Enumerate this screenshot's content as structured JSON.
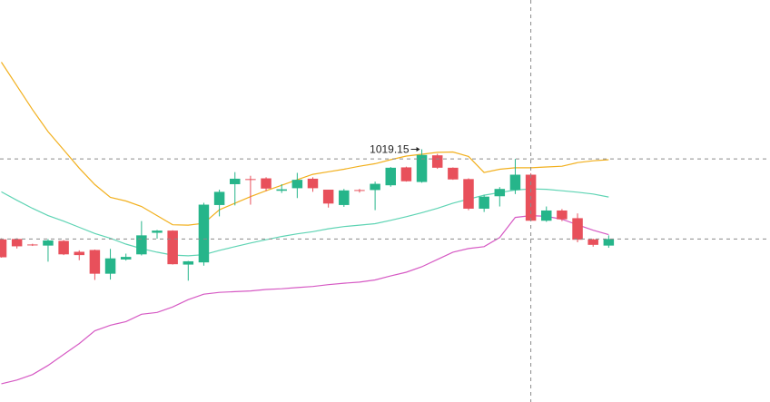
{
  "chart_data": {
    "type": "candlestick",
    "ylim": [
      950,
      1060
    ],
    "grid": false,
    "legend": "none",
    "colors": {
      "up": "#26b58a",
      "down": "#e8505b",
      "upper_band": "#f2b01e",
      "middle_band": "#5fd4b4",
      "lower_band": "#d65ac4",
      "crosshair": "#8a8a8a"
    },
    "annotations": {
      "max_label": "1019.15",
      "max_index": 27
    },
    "crosshair": {
      "index": 34,
      "price": 1016.5,
      "reference_price": 994.6
    },
    "candles": [
      {
        "o": 994.5,
        "h": 994.8,
        "l": 989.5,
        "c": 989.6
      },
      {
        "o": 994.6,
        "h": 994.8,
        "l": 992.0,
        "c": 992.6
      },
      {
        "o": 993.1,
        "h": 993.3,
        "l": 992.7,
        "c": 993.0
      },
      {
        "o": 992.8,
        "h": 994.6,
        "l": 988.4,
        "c": 994.2
      },
      {
        "o": 994.1,
        "h": 994.3,
        "l": 990.2,
        "c": 990.4
      },
      {
        "o": 991.1,
        "h": 991.5,
        "l": 988.8,
        "c": 990.2
      },
      {
        "o": 991.6,
        "h": 991.7,
        "l": 983.4,
        "c": 985.1
      },
      {
        "o": 985.1,
        "h": 991.9,
        "l": 983.5,
        "c": 989.3
      },
      {
        "o": 989.0,
        "h": 990.6,
        "l": 988.7,
        "c": 989.7
      },
      {
        "o": 990.4,
        "h": 999.5,
        "l": 990.1,
        "c": 995.6
      },
      {
        "o": 996.3,
        "h": 997.1,
        "l": 994.7,
        "c": 996.9
      },
      {
        "o": 996.9,
        "h": 997.0,
        "l": 987.6,
        "c": 987.7
      },
      {
        "o": 987.6,
        "h": 988.6,
        "l": 983.2,
        "c": 988.5
      },
      {
        "o": 988.2,
        "h": 1004.5,
        "l": 987.3,
        "c": 1004.0
      },
      {
        "o": 1003.9,
        "h": 1008.1,
        "l": 1000.8,
        "c": 1007.5
      },
      {
        "o": 1009.6,
        "h": 1012.9,
        "l": 1003.8,
        "c": 1011.1
      },
      {
        "o": 1011.0,
        "h": 1011.9,
        "l": 1004.0,
        "c": 1010.8
      },
      {
        "o": 1011.2,
        "h": 1011.5,
        "l": 1007.7,
        "c": 1008.4
      },
      {
        "o": 1007.8,
        "h": 1009.6,
        "l": 1007.2,
        "c": 1008.2
      },
      {
        "o": 1008.5,
        "h": 1012.7,
        "l": 1005.8,
        "c": 1010.8
      },
      {
        "o": 1011.1,
        "h": 1011.5,
        "l": 1007.5,
        "c": 1008.5
      },
      {
        "o": 1008.1,
        "h": 1008.1,
        "l": 1003.2,
        "c": 1004.3
      },
      {
        "o": 1003.9,
        "h": 1008.3,
        "l": 1003.4,
        "c": 1007.9
      },
      {
        "o": 1008.0,
        "h": 1008.3,
        "l": 1007.3,
        "c": 1007.8
      },
      {
        "o": 1008.0,
        "h": 1010.3,
        "l": 1002.5,
        "c": 1009.7
      },
      {
        "o": 1009.3,
        "h": 1014.3,
        "l": 1008.9,
        "c": 1014.1
      },
      {
        "o": 1014.2,
        "h": 1014.4,
        "l": 1010.3,
        "c": 1010.4
      },
      {
        "o": 1010.2,
        "h": 1019.15,
        "l": 1010.0,
        "c": 1017.6
      },
      {
        "o": 1017.5,
        "h": 1017.9,
        "l": 1013.8,
        "c": 1014.1
      },
      {
        "o": 1014.1,
        "h": 1014.2,
        "l": 1010.8,
        "c": 1010.9
      },
      {
        "o": 1011.0,
        "h": 1011.2,
        "l": 1002.5,
        "c": 1002.9
      },
      {
        "o": 1002.9,
        "h": 1006.7,
        "l": 1002.0,
        "c": 1006.2
      },
      {
        "o": 1006.3,
        "h": 1008.8,
        "l": 1003.5,
        "c": 1008.3
      },
      {
        "o": 1008.0,
        "h": 1016.5,
        "l": 1006.9,
        "c": 1012.2
      },
      {
        "o": 1012.2,
        "h": 1012.6,
        "l": 999.5,
        "c": 999.6
      },
      {
        "o": 999.6,
        "h": 1003.5,
        "l": 999.3,
        "c": 1002.4
      },
      {
        "o": 1002.4,
        "h": 1002.8,
        "l": 999.5,
        "c": 1000.0
      },
      {
        "o": 1000.3,
        "h": 1001.6,
        "l": 993.7,
        "c": 994.4
      },
      {
        "o": 994.5,
        "h": 994.7,
        "l": 992.5,
        "c": 993.0
      },
      {
        "o": 992.8,
        "h": 995.6,
        "l": 992.2,
        "c": 994.6
      }
    ],
    "bollinger": {
      "upper": [
        1043.0,
        1036.5,
        1030.0,
        1024.0,
        1019.0,
        1014.0,
        1009.5,
        1006.0,
        1005.0,
        1003.5,
        1001.0,
        998.5,
        998.4,
        998.9,
        1002.6,
        1004.4,
        1006.2,
        1007.8,
        1009.3,
        1010.8,
        1012.3,
        1013.0,
        1013.7,
        1014.5,
        1015.2,
        1016.3,
        1017.3,
        1017.8,
        1018.3,
        1018.4,
        1017.2,
        1012.8,
        1013.7,
        1014.1,
        1014.1,
        1014.3,
        1014.5,
        1015.5,
        1016.0,
        1016.3
      ],
      "middle": [
        1007.5,
        1005.2,
        1003.0,
        1001.0,
        999.5,
        997.8,
        996.1,
        994.8,
        993.2,
        992.0,
        991.0,
        990.2,
        990.0,
        990.3,
        991.5,
        992.5,
        993.5,
        994.4,
        995.3,
        996.0,
        996.6,
        997.4,
        998.0,
        998.4,
        998.8,
        999.7,
        1000.7,
        1001.8,
        1003.0,
        1004.4,
        1005.5,
        1006.6,
        1007.3,
        1008.0,
        1008.3,
        1008.2,
        1007.8,
        1007.4,
        1006.9,
        1006.1
      ],
      "lower": [
        955.0,
        956.0,
        957.5,
        960.0,
        963.0,
        966.0,
        969.5,
        971.0,
        972.0,
        974.0,
        974.5,
        976.0,
        978.0,
        979.5,
        980.0,
        980.2,
        980.4,
        980.8,
        981.0,
        981.3,
        981.6,
        982.1,
        982.5,
        982.8,
        983.4,
        984.5,
        985.5,
        987.0,
        989.0,
        991.0,
        992.0,
        992.5,
        995.0,
        1000.5,
        1001.0,
        1000.8,
        1000.0,
        998.5,
        997.0,
        995.8
      ]
    }
  }
}
